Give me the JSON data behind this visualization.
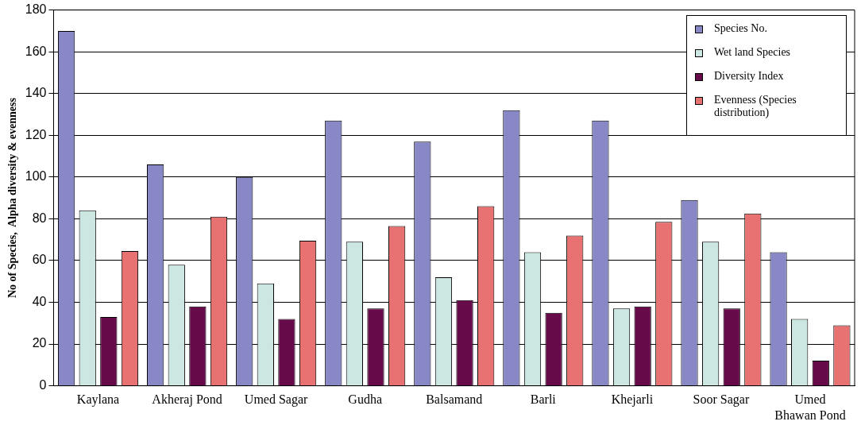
{
  "chart_data": {
    "type": "bar",
    "ylabel": "No of Species,  Alpha diversity & evenness",
    "categories": [
      "Kaylana",
      "Akheraj Pond",
      "Umed Sagar",
      "Gudha",
      "Balsamand",
      "Barli",
      "Khejarli",
      "Soor Sagar",
      "Umed Bhawan Pond"
    ],
    "series": [
      {
        "name": "Species No.",
        "color": "#8888c6",
        "values": [
          170,
          106,
          100,
          127,
          117,
          132,
          127,
          89,
          64
        ]
      },
      {
        "name": "Wet land Species",
        "color": "#cce6e2",
        "values": [
          84,
          58,
          49,
          69,
          52,
          64,
          37,
          69,
          32
        ]
      },
      {
        "name": "Diversity Index",
        "color": "#660a4a",
        "values": [
          33,
          38,
          32,
          37,
          41,
          35,
          38,
          37,
          12
        ]
      },
      {
        "name": "Evenness (Species distribution)",
        "color": "#e87272",
        "values": [
          64.5,
          81,
          69.5,
          76.5,
          86,
          72,
          78.5,
          82.5,
          29
        ]
      }
    ],
    "ylim": [
      0,
      180
    ],
    "yticks": [
      0,
      20,
      40,
      60,
      80,
      100,
      120,
      140,
      160,
      180
    ],
    "grid": "y",
    "legend": "top right"
  }
}
